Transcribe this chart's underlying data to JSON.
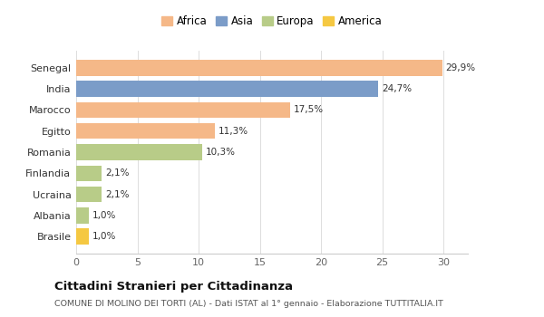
{
  "categories": [
    "Brasile",
    "Albania",
    "Ucraina",
    "Finlandia",
    "Romania",
    "Egitto",
    "Marocco",
    "India",
    "Senegal"
  ],
  "values": [
    1.0,
    1.0,
    2.1,
    2.1,
    10.3,
    11.3,
    17.5,
    24.7,
    29.9
  ],
  "labels": [
    "1,0%",
    "1,0%",
    "2,1%",
    "2,1%",
    "10,3%",
    "11,3%",
    "17,5%",
    "24,7%",
    "29,9%"
  ],
  "colors": [
    "#f5c842",
    "#b8cc88",
    "#b8cc88",
    "#b8cc88",
    "#b8cc88",
    "#f5b888",
    "#f5b888",
    "#7b9cc8",
    "#f5b888"
  ],
  "legend": [
    {
      "label": "Africa",
      "color": "#f5b888"
    },
    {
      "label": "Asia",
      "color": "#7b9cc8"
    },
    {
      "label": "Europa",
      "color": "#b8cc88"
    },
    {
      "label": "America",
      "color": "#f5c842"
    }
  ],
  "xlim": [
    0,
    32
  ],
  "xticks": [
    0,
    5,
    10,
    15,
    20,
    25,
    30
  ],
  "title": "Cittadini Stranieri per Cittadinanza",
  "subtitle": "COMUNE DI MOLINO DEI TORTI (AL) - Dati ISTAT al 1° gennaio - Elaborazione TUTTITALIA.IT",
  "bg_color": "#ffffff",
  "bar_height": 0.75
}
